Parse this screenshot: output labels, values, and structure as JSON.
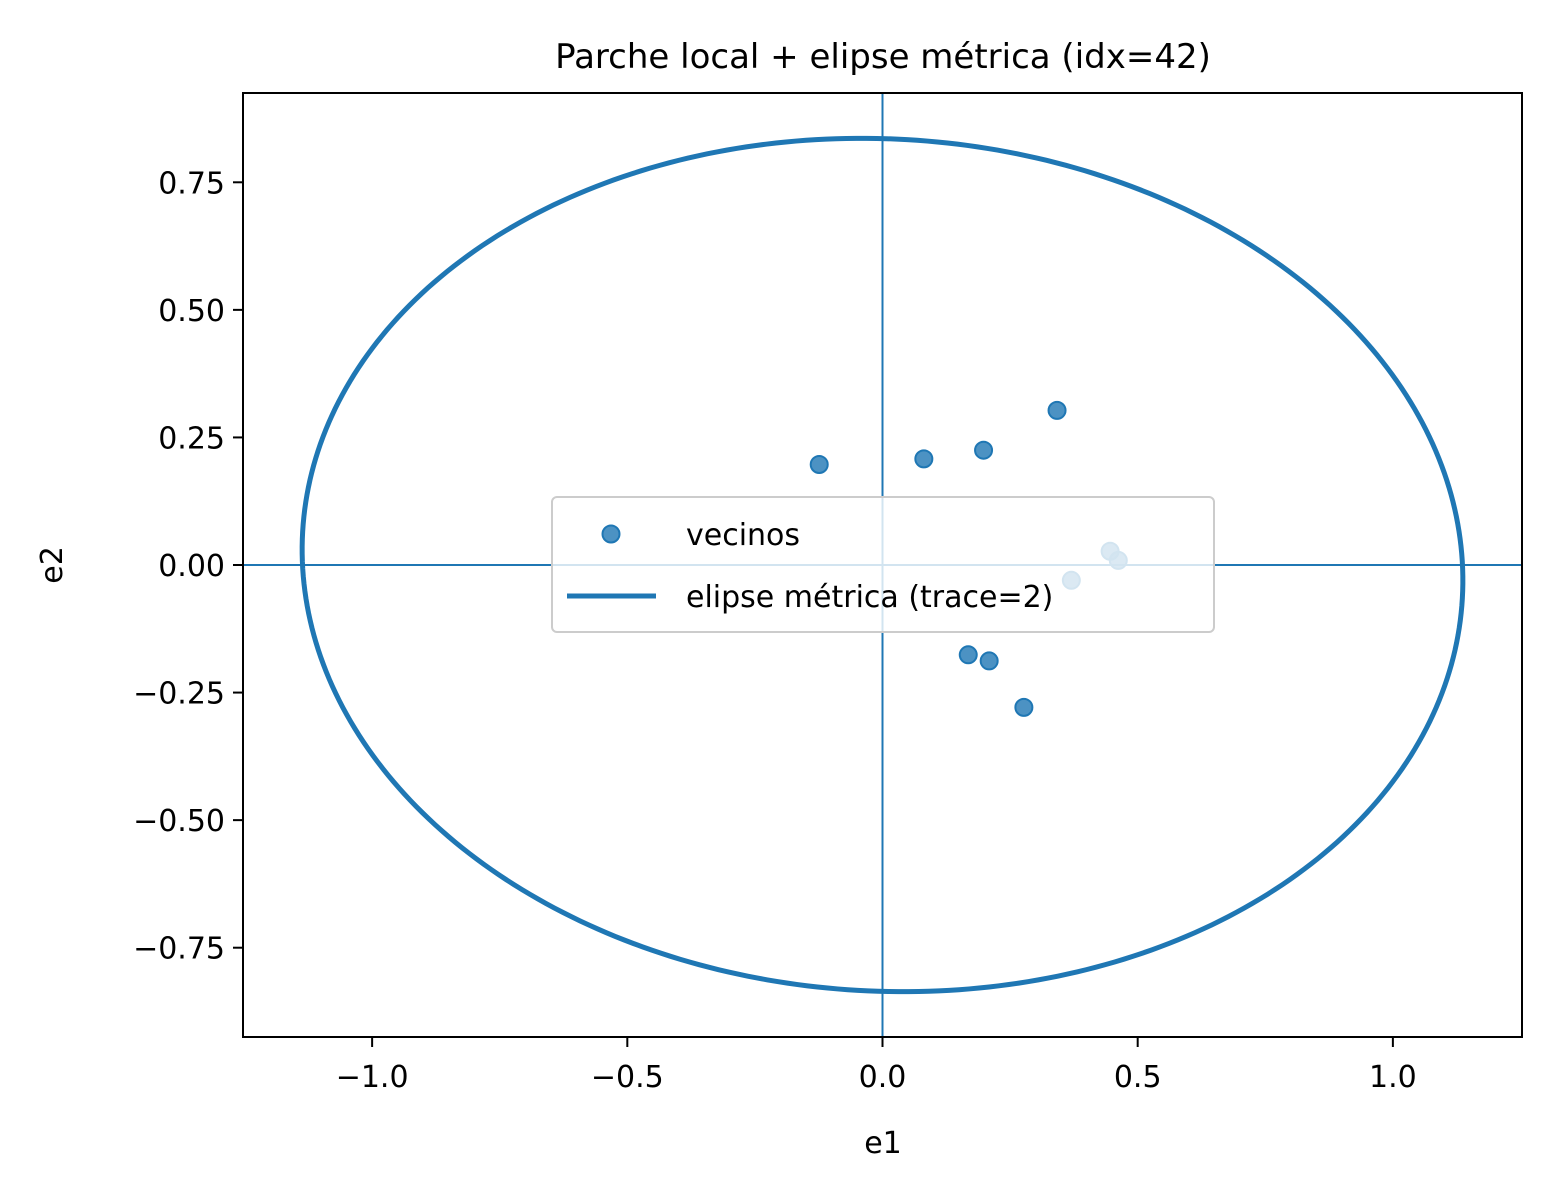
{
  "chart_data": {
    "type": "scatter",
    "title": "Parche local + elipse métrica (idx=42)",
    "xlabel": "e1",
    "ylabel": "e2",
    "xlim": [
      -1.253,
      1.253
    ],
    "ylim": [
      -0.925,
      0.925
    ],
    "xticks": [
      {
        "value": -1.0,
        "label": "−1.0"
      },
      {
        "value": -0.5,
        "label": "−0.5"
      },
      {
        "value": 0.0,
        "label": "0.0"
      },
      {
        "value": 0.5,
        "label": "0.5"
      },
      {
        "value": 1.0,
        "label": "1.0"
      }
    ],
    "yticks": [
      {
        "value": 0.75,
        "label": "0.75"
      },
      {
        "value": 0.5,
        "label": "0.50"
      },
      {
        "value": 0.25,
        "label": "0.25"
      },
      {
        "value": 0.0,
        "label": "0.00"
      },
      {
        "value": -0.25,
        "label": "−0.25"
      },
      {
        "value": -0.5,
        "label": "−0.50"
      },
      {
        "value": -0.75,
        "label": "−0.75"
      }
    ],
    "grid": false,
    "axis_lines": {
      "x": 0.0,
      "y": 0.0
    },
    "legend_placement": "center",
    "series": [
      {
        "name": "vecinos",
        "kind": "scatter",
        "color": "#1f77b4",
        "points": [
          {
            "x": -0.124,
            "y": 0.197
          },
          {
            "x": 0.081,
            "y": 0.208
          },
          {
            "x": 0.198,
            "y": 0.225
          },
          {
            "x": 0.342,
            "y": 0.303
          },
          {
            "x": 0.446,
            "y": 0.027
          },
          {
            "x": 0.462,
            "y": 0.009
          },
          {
            "x": 0.37,
            "y": -0.03
          },
          {
            "x": 0.168,
            "y": -0.176
          },
          {
            "x": 0.209,
            "y": -0.188
          },
          {
            "x": 0.277,
            "y": -0.279
          }
        ]
      },
      {
        "name": "elipse métrica (trace=2)",
        "kind": "ellipse",
        "color": "#1f77b4",
        "center": [
          0.0,
          0.0
        ],
        "semi_major": 1.138,
        "semi_minor": 0.835,
        "rotation_deg": -3.3
      }
    ]
  }
}
